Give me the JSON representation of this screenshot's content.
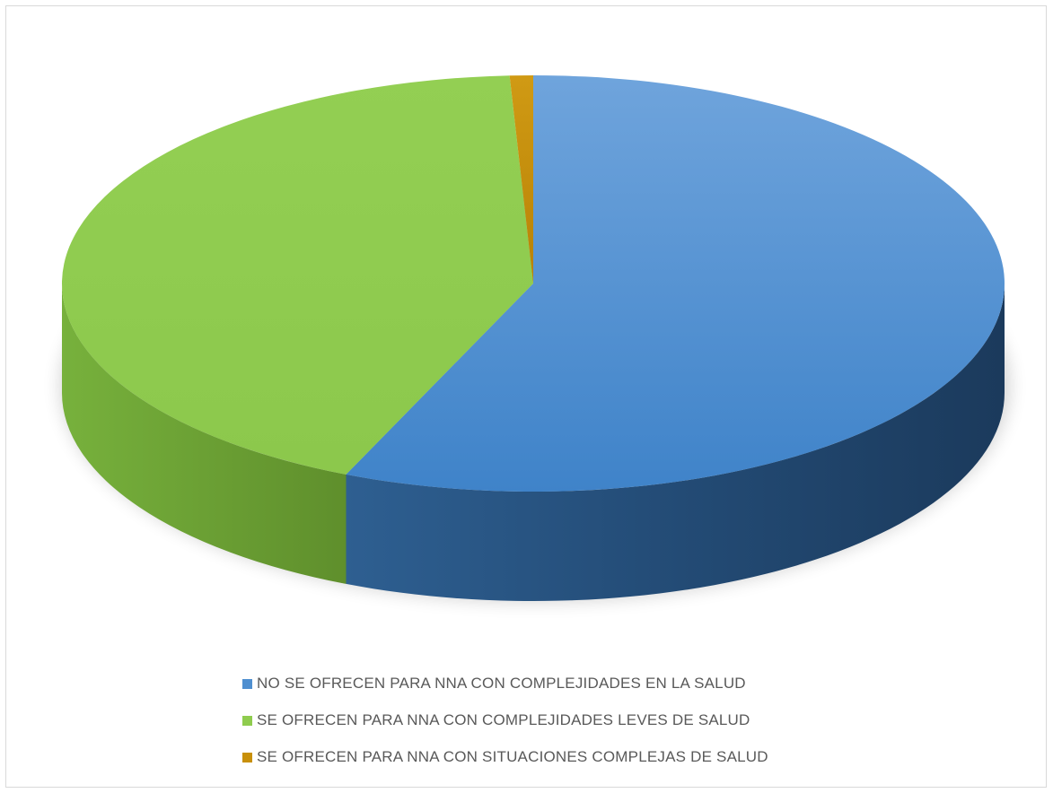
{
  "chart_data": {
    "type": "pie",
    "style": "3d",
    "title": "",
    "legend_position": "bottom",
    "series": [
      {
        "name": "NO SE OFRECEN PARA NNA CON COMPLEJIDADES EN LA SALUD",
        "value": 56.5,
        "color": "#4f8fd0"
      },
      {
        "name": "SE OFRECEN PARA NNA CON COMPLEJIDADES LEVES DE SALUD",
        "value": 42.7,
        "color": "#8fcc4e"
      },
      {
        "name": "SE OFRECEN PARA NNA CON SITUACIONES COMPLEJAS DE SALUD",
        "value": 0.8,
        "color": "#c8900a"
      }
    ]
  }
}
